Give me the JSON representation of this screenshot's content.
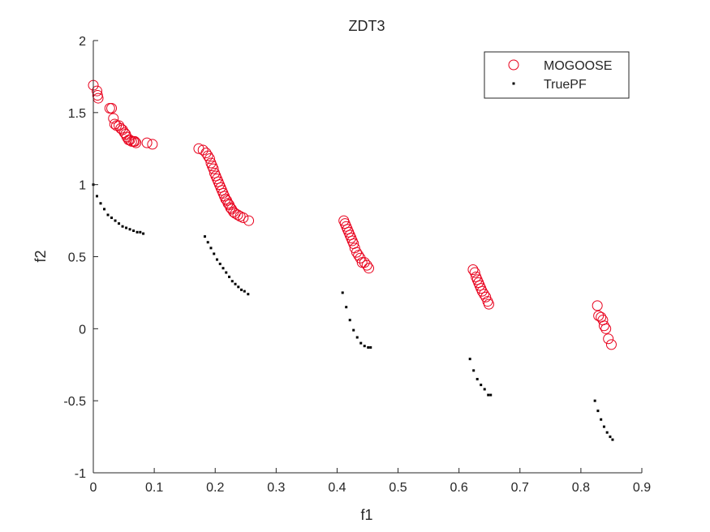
{
  "chart_data": {
    "type": "scatter",
    "title": "ZDT3",
    "xlabel": "f1",
    "ylabel": "f2",
    "xlim": [
      0,
      0.9
    ],
    "ylim": [
      -1,
      2
    ],
    "xticks": [
      0,
      0.1,
      0.2,
      0.3,
      0.4,
      0.5,
      0.6,
      0.7,
      0.8,
      0.9
    ],
    "xtick_labels": [
      "0",
      "0.1",
      "0.2",
      "0.3",
      "0.4",
      "0.5",
      "0.6",
      "0.7",
      "0.8",
      "0.9"
    ],
    "yticks": [
      -1,
      -0.5,
      0,
      0.5,
      1,
      1.5,
      2
    ],
    "ytick_labels": [
      "-1",
      "-0.5",
      "0",
      "0.5",
      "1",
      "1.5",
      "2"
    ],
    "grid": false,
    "legend_position": "top-right",
    "series": [
      {
        "name": "MOGOOSE",
        "marker": "circle-open",
        "color": "#e8001c",
        "x": [
          0.0,
          0.006,
          0.007,
          0.008,
          0.027,
          0.03,
          0.033,
          0.035,
          0.038,
          0.042,
          0.045,
          0.048,
          0.051,
          0.053,
          0.055,
          0.058,
          0.06,
          0.063,
          0.066,
          0.068,
          0.07,
          0.088,
          0.097,
          0.173,
          0.18,
          0.185,
          0.188,
          0.191,
          0.193,
          0.195,
          0.197,
          0.199,
          0.201,
          0.203,
          0.205,
          0.207,
          0.209,
          0.211,
          0.213,
          0.215,
          0.217,
          0.219,
          0.221,
          0.223,
          0.225,
          0.227,
          0.23,
          0.233,
          0.237,
          0.241,
          0.246,
          0.255,
          0.411,
          0.413,
          0.415,
          0.417,
          0.419,
          0.421,
          0.423,
          0.425,
          0.427,
          0.429,
          0.432,
          0.435,
          0.438,
          0.441,
          0.445,
          0.449,
          0.452,
          0.623,
          0.626,
          0.628,
          0.63,
          0.632,
          0.634,
          0.636,
          0.638,
          0.641,
          0.644,
          0.647,
          0.649,
          0.827,
          0.829,
          0.833,
          0.836,
          0.838,
          0.841,
          0.845,
          0.85
        ],
        "y": [
          1.69,
          1.65,
          1.62,
          1.6,
          1.53,
          1.53,
          1.46,
          1.42,
          1.41,
          1.41,
          1.39,
          1.38,
          1.36,
          1.35,
          1.33,
          1.31,
          1.31,
          1.3,
          1.3,
          1.3,
          1.29,
          1.29,
          1.28,
          1.25,
          1.24,
          1.22,
          1.2,
          1.18,
          1.15,
          1.13,
          1.11,
          1.08,
          1.06,
          1.04,
          1.02,
          1.0,
          0.98,
          0.96,
          0.94,
          0.92,
          0.9,
          0.89,
          0.87,
          0.86,
          0.84,
          0.83,
          0.81,
          0.8,
          0.79,
          0.78,
          0.77,
          0.75,
          0.75,
          0.73,
          0.71,
          0.69,
          0.67,
          0.65,
          0.63,
          0.61,
          0.59,
          0.56,
          0.53,
          0.51,
          0.49,
          0.46,
          0.46,
          0.44,
          0.42,
          0.41,
          0.39,
          0.36,
          0.34,
          0.32,
          0.3,
          0.28,
          0.26,
          0.24,
          0.22,
          0.19,
          0.17,
          0.16,
          0.09,
          0.08,
          0.06,
          0.02,
          0.0,
          -0.07,
          -0.11
        ]
      },
      {
        "name": "TruePF",
        "marker": "dot",
        "color": "#000000",
        "x": [
          0.0,
          0.006,
          0.012,
          0.018,
          0.024,
          0.03,
          0.036,
          0.042,
          0.048,
          0.054,
          0.06,
          0.066,
          0.072,
          0.077,
          0.082,
          0.183,
          0.188,
          0.193,
          0.198,
          0.203,
          0.208,
          0.213,
          0.218,
          0.223,
          0.228,
          0.233,
          0.238,
          0.243,
          0.248,
          0.254,
          0.409,
          0.415,
          0.421,
          0.427,
          0.433,
          0.439,
          0.445,
          0.451,
          0.455,
          0.618,
          0.624,
          0.63,
          0.636,
          0.642,
          0.648,
          0.652,
          0.823,
          0.828,
          0.833,
          0.838,
          0.843,
          0.848,
          0.852
        ],
        "y": [
          1.0,
          0.92,
          0.87,
          0.83,
          0.79,
          0.77,
          0.75,
          0.73,
          0.71,
          0.7,
          0.69,
          0.68,
          0.67,
          0.67,
          0.66,
          0.64,
          0.6,
          0.56,
          0.52,
          0.48,
          0.45,
          0.42,
          0.39,
          0.36,
          0.33,
          0.31,
          0.29,
          0.27,
          0.26,
          0.24,
          0.25,
          0.15,
          0.06,
          -0.01,
          -0.06,
          -0.1,
          -0.12,
          -0.13,
          -0.13,
          -0.21,
          -0.29,
          -0.35,
          -0.39,
          -0.42,
          -0.46,
          -0.46,
          -0.5,
          -0.57,
          -0.63,
          -0.68,
          -0.72,
          -0.75,
          -0.77
        ]
      }
    ]
  }
}
